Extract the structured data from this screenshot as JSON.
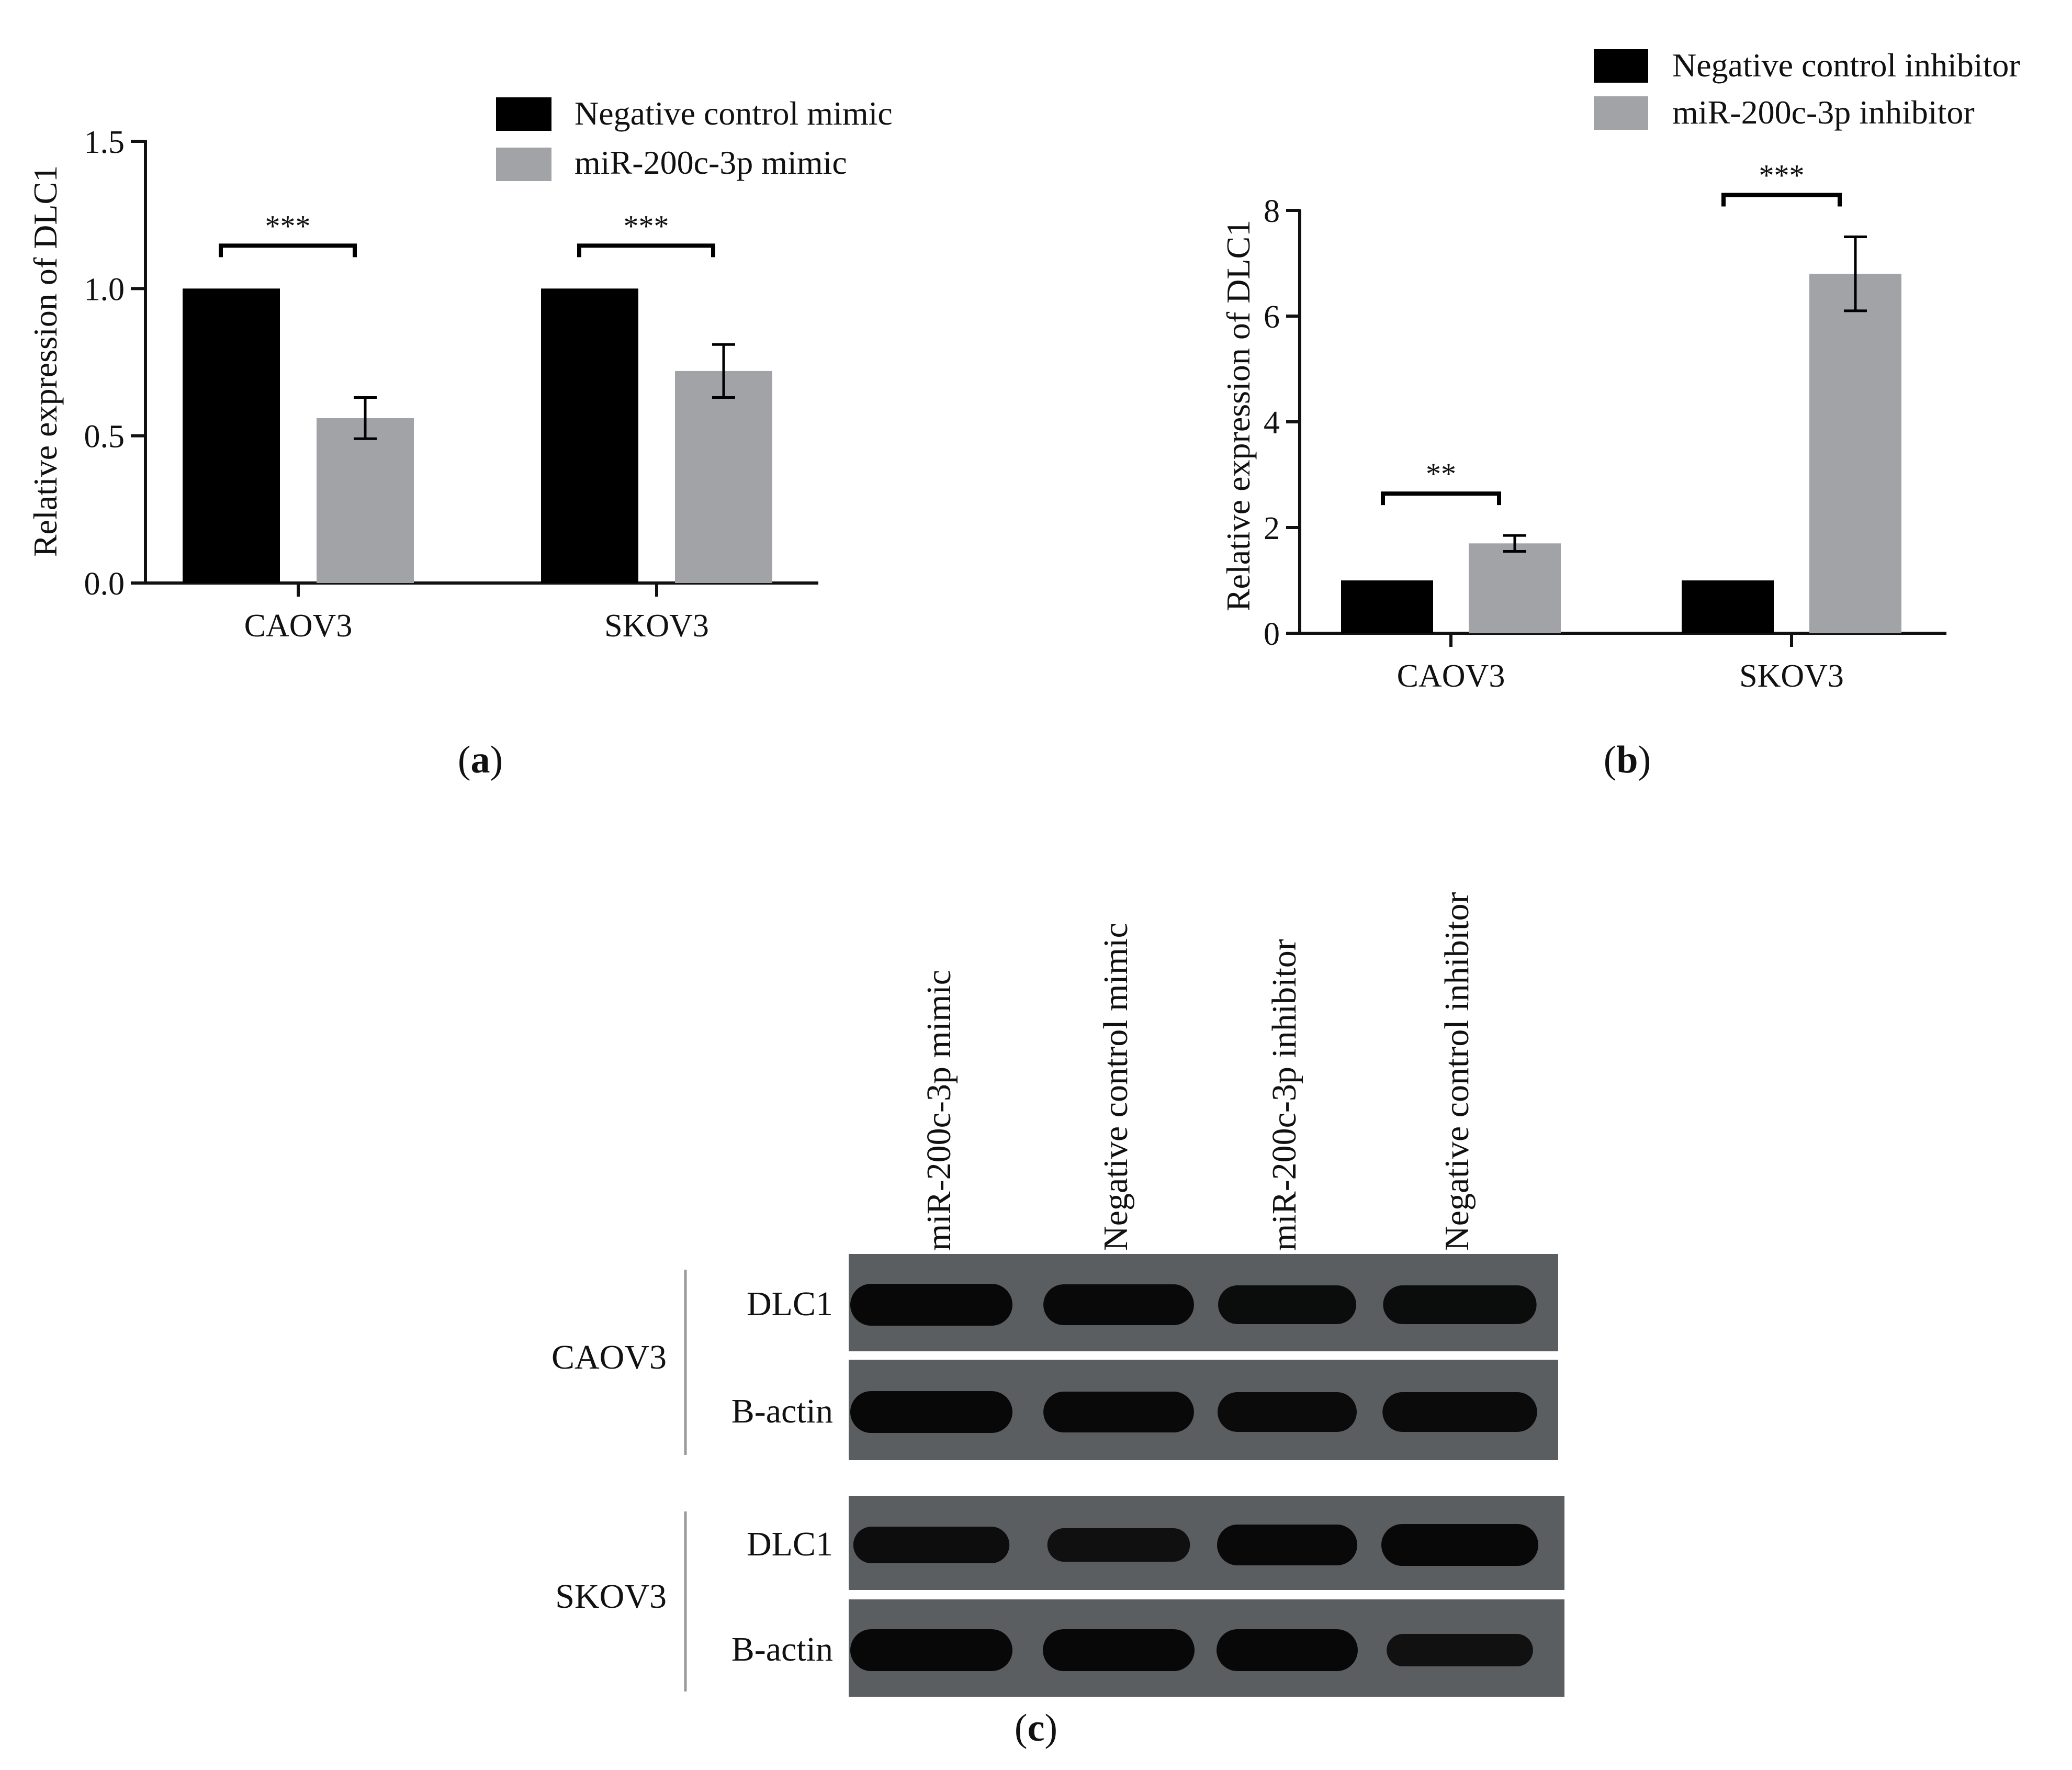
{
  "colors": {
    "control": "#000000",
    "treatment": "#a2a3a6",
    "blot_background": "#5b5e60",
    "band": "#080808",
    "axis": "#111111"
  },
  "panels": {
    "a": {
      "label_open": "(",
      "label_letter": "a",
      "label_close": ")"
    },
    "b": {
      "label_open": "(",
      "label_letter": "b",
      "label_close": ")"
    },
    "c": {
      "label_open": "(",
      "label_letter": "c",
      "label_close": ")"
    }
  },
  "chart_data": [
    {
      "id": "a",
      "type": "bar",
      "categories": [
        "CAOV3",
        "SKOV3"
      ],
      "series": [
        {
          "name": "Negative control mimic",
          "color": "#000000",
          "values": [
            1.0,
            1.0
          ],
          "errors": [
            0,
            0
          ]
        },
        {
          "name": "miR-200c-3p mimic",
          "color": "#a2a3a6",
          "values": [
            0.56,
            0.72
          ],
          "errors": [
            0.07,
            0.09
          ]
        }
      ],
      "significance": [
        "***",
        "***"
      ],
      "ylabel": "Relative expression of DLC1",
      "xlabel": "",
      "ylim": [
        0,
        1.5
      ],
      "yticks": [
        "0.0",
        "0.5",
        "1.0",
        "1.5"
      ],
      "legend_position": "top-right"
    },
    {
      "id": "b",
      "type": "bar",
      "categories": [
        "CAOV3",
        "SKOV3"
      ],
      "series": [
        {
          "name": "Negative control inhibitor",
          "color": "#000000",
          "values": [
            1.0,
            1.0
          ],
          "errors": [
            0,
            0
          ]
        },
        {
          "name": "miR-200c-3p inhibitor",
          "color": "#a2a3a6",
          "values": [
            1.7,
            6.8
          ],
          "errors": [
            0.15,
            0.7
          ]
        }
      ],
      "significance": [
        "**",
        "***"
      ],
      "ylabel": "Relative expression of DLC1",
      "xlabel": "",
      "ylim": [
        0,
        8
      ],
      "yticks": [
        "0",
        "2",
        "4",
        "6",
        "8"
      ],
      "legend_position": "top-right"
    }
  ],
  "blot": {
    "lanes": [
      "miR-200c-3p mimic",
      "Negative control mimic",
      "miR-200c-3p inhibitor",
      "Negative control inhibitor"
    ],
    "groups": [
      {
        "cell_line": "CAOV3",
        "rows": [
          {
            "protein": "DLC1",
            "band_intensity": [
              1.0,
              0.95,
              0.85,
              0.85
            ]
          },
          {
            "protein": "B-actin",
            "band_intensity": [
              1.0,
              0.95,
              0.9,
              0.9
            ]
          }
        ]
      },
      {
        "cell_line": "SKOV3",
        "rows": [
          {
            "protein": "DLC1",
            "band_intensity": [
              0.75,
              0.6,
              0.95,
              1.0
            ]
          },
          {
            "protein": "B-actin",
            "band_intensity": [
              1.0,
              1.0,
              1.0,
              0.55
            ]
          }
        ]
      }
    ]
  }
}
